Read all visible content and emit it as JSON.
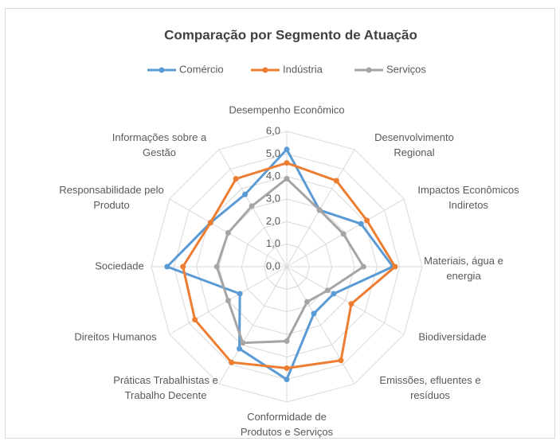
{
  "chart_data": {
    "type": "radar",
    "title": "Comparação por Segmento de Atuação",
    "categories": [
      "Desempenho Econômico",
      "Desenvolvimento Regional",
      "Impactos Econômicos Indiretos",
      "Materiais, água e energia",
      "Biodiversidade",
      "Emissões, efluentes e resíduos",
      "Conformidade de Produtos e Serviços",
      "Práticas Trabalhistas e Trabalho Decente",
      "Direitos Humanos",
      "Sociedade",
      "Responsabilidade pelo Produto",
      "Informações sobre a Gestão"
    ],
    "series": [
      {
        "name": "Comércio",
        "color": "#5b9bd5",
        "values": [
          5.2,
          2.9,
          3.8,
          4.7,
          2.4,
          2.4,
          5.0,
          4.2,
          2.4,
          5.3,
          3.9,
          3.7
        ]
      },
      {
        "name": "Indústria",
        "color": "#ed7d31",
        "values": [
          4.6,
          4.4,
          4.1,
          4.8,
          3.3,
          4.8,
          4.5,
          4.9,
          4.7,
          4.6,
          3.9,
          4.5
        ]
      },
      {
        "name": "Serviços",
        "color": "#a5a5a5",
        "values": [
          3.9,
          2.9,
          2.9,
          3.4,
          2.1,
          1.8,
          3.3,
          3.9,
          3.0,
          3.1,
          3.0,
          3.1
        ]
      }
    ],
    "ylim": [
      0,
      6
    ],
    "yticks": [
      {
        "value": 0,
        "label": "0,0"
      },
      {
        "value": 1,
        "label": "1,0"
      },
      {
        "value": 2,
        "label": "2,0"
      },
      {
        "value": 3,
        "label": "3,0"
      },
      {
        "value": 4,
        "label": "4,0"
      },
      {
        "value": 5,
        "label": "5,0"
      },
      {
        "value": 6,
        "label": "6,0"
      }
    ],
    "grid": true,
    "legend": "top"
  }
}
